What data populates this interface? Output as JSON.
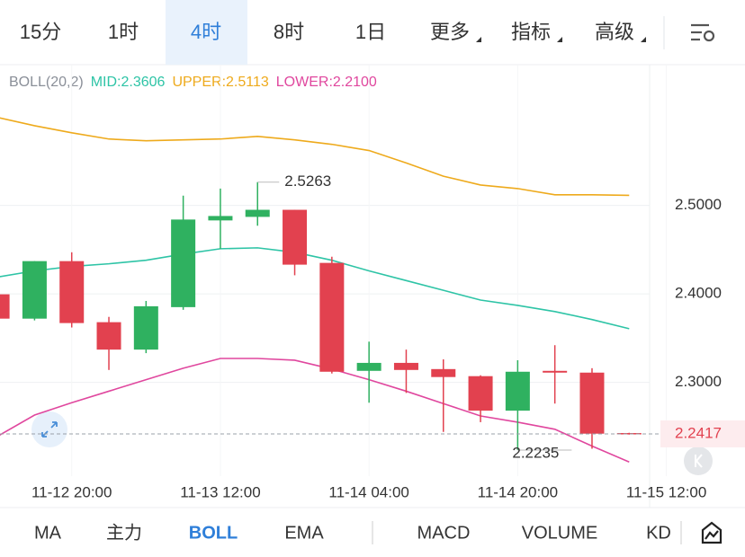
{
  "tabs": {
    "items": [
      "15分",
      "1时",
      "4时",
      "8时",
      "1日",
      "更多",
      "指标",
      "高级"
    ],
    "selected": 2
  },
  "indicators": {
    "items": [
      "MA",
      "主力",
      "BOLL",
      "EMA",
      "MACD",
      "VOLUME",
      "KD"
    ],
    "selected": 2
  },
  "chart_data": {
    "type": "candlestick",
    "indicator_label": "BOLL(20,2)",
    "open": [
      2.3995,
      2.372,
      2.437,
      2.368,
      2.337,
      2.385,
      2.483,
      2.487,
      2.495,
      2.435,
      2.313,
      2.322,
      2.315,
      2.307,
      2.268,
      2.313,
      2.311,
      2.2427
    ],
    "high": [
      2.3995,
      2.437,
      2.447,
      2.374,
      2.392,
      2.511,
      2.519,
      2.5263,
      2.495,
      2.442,
      2.346,
      2.337,
      2.326,
      2.308,
      2.325,
      2.342,
      2.316,
      2.243
    ],
    "low": [
      2.372,
      2.37,
      2.362,
      2.314,
      2.333,
      2.382,
      2.451,
      2.477,
      2.421,
      2.31,
      2.277,
      2.288,
      2.244,
      2.255,
      2.2235,
      2.276,
      2.225,
      2.241
    ],
    "close": [
      2.372,
      2.437,
      2.367,
      2.337,
      2.386,
      2.484,
      2.488,
      2.495,
      2.433,
      2.312,
      2.322,
      2.314,
      2.306,
      2.268,
      2.312,
      2.311,
      2.242,
      2.2417
    ],
    "up_color": "#2fb160",
    "down_color": "#e2414f",
    "series": [
      {
        "name": "MID:2.3606",
        "color": "#2ec4a6",
        "values": [
          2.419,
          2.426,
          2.431,
          2.434,
          2.438,
          2.445,
          2.451,
          2.452,
          2.447,
          2.438,
          2.426,
          2.415,
          2.404,
          2.393,
          2.387,
          2.38,
          2.371,
          2.3606
        ]
      },
      {
        "name": "UPPER:2.5113",
        "color": "#eeaa1c",
        "values": [
          2.5995,
          2.59,
          2.582,
          2.575,
          2.573,
          2.574,
          2.575,
          2.578,
          2.574,
          2.569,
          2.562,
          2.548,
          2.533,
          2.523,
          2.519,
          2.512,
          2.512,
          2.5113
        ]
      },
      {
        "name": "LOWER:2.2100",
        "color": "#e0479e",
        "values": [
          2.239,
          2.263,
          2.277,
          2.29,
          2.303,
          2.316,
          2.327,
          2.327,
          2.325,
          2.315,
          2.303,
          2.29,
          2.276,
          2.262,
          2.255,
          2.247,
          2.228,
          2.21
        ]
      }
    ],
    "ylim": [
      2.194,
      2.659
    ],
    "yticks": [
      {
        "value": 2.3,
        "label": "2.3000"
      },
      {
        "value": 2.4,
        "label": "2.4000"
      },
      {
        "value": 2.5,
        "label": "2.5000"
      }
    ],
    "xlim": [
      0.07,
      17.55
    ],
    "xticks": [
      {
        "value": 2,
        "label": "11-12 20:00"
      },
      {
        "value": 6,
        "label": "11-13 12:00"
      },
      {
        "value": 10,
        "label": "11-14 04:00"
      },
      {
        "value": 14,
        "label": "11-14 20:00"
      },
      {
        "value": 18,
        "label": "11-15 12:00"
      }
    ]
  }
}
